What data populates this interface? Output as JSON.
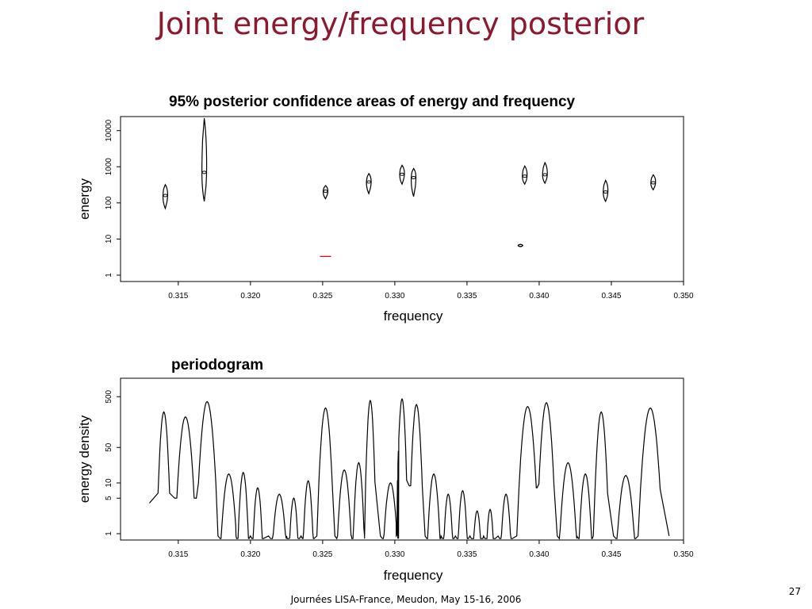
{
  "slide": {
    "title": "Joint energy/frequency posterior",
    "footer": "Journées LISA-France, Meudon, May 15-16,  2006",
    "page_number": "27"
  },
  "chart_data": [
    {
      "type": "scatter",
      "title": "95% posterior confidence areas of energy and frequency",
      "xlabel": "frequency",
      "ylabel": "energy",
      "xlim": [
        0.311,
        0.35
      ],
      "ylim": [
        1,
        20000
      ],
      "y_scale": "log",
      "x_ticks": [
        "0.315",
        "0.320",
        "0.325",
        "0.330",
        "0.335",
        "0.340",
        "0.345",
        "0.350"
      ],
      "y_ticks": [
        "1",
        "10",
        "100",
        "1000",
        "10000"
      ],
      "grid": false,
      "points": [
        {
          "x": 0.3141,
          "y": 160,
          "y_low": 70,
          "y_high": 320
        },
        {
          "x": 0.3168,
          "y": 700,
          "y_low": 110,
          "y_high": 22000
        },
        {
          "x": 0.3252,
          "y": 210,
          "y_low": 130,
          "y_high": 300
        },
        {
          "x": 0.3282,
          "y": 380,
          "y_low": 180,
          "y_high": 650
        },
        {
          "x": 0.3305,
          "y": 620,
          "y_low": 330,
          "y_high": 1100
        },
        {
          "x": 0.3313,
          "y": 500,
          "y_low": 150,
          "y_high": 900
        },
        {
          "x": 0.339,
          "y": 550,
          "y_low": 330,
          "y_high": 1050
        },
        {
          "x": 0.3404,
          "y": 600,
          "y_low": 350,
          "y_high": 1300
        },
        {
          "x": 0.3446,
          "y": 200,
          "y_low": 110,
          "y_high": 420
        },
        {
          "x": 0.3479,
          "y": 360,
          "y_low": 230,
          "y_high": 600
        },
        {
          "x": 0.3387,
          "y": 6.6,
          "y_low": 6.2,
          "y_high": 7.1
        }
      ],
      "red_marker": {
        "x": 0.3252,
        "y": 3.3,
        "color": "#d01010"
      }
    },
    {
      "type": "line",
      "title": "periodogram",
      "xlabel": "frequency",
      "ylabel": "energy density",
      "xlim": [
        0.311,
        0.35
      ],
      "ylim": [
        1,
        1000
      ],
      "y_scale": "log",
      "x_ticks": [
        "0.315",
        "0.320",
        "0.325",
        "0.330",
        "0.335",
        "0.340",
        "0.345",
        "0.350"
      ],
      "y_ticks": [
        "1",
        "5",
        "10",
        "50",
        "500"
      ],
      "grid": false,
      "peaks": [
        {
          "x": 0.314,
          "y": 250
        },
        {
          "x": 0.3155,
          "y": 200
        },
        {
          "x": 0.317,
          "y": 400
        },
        {
          "x": 0.3185,
          "y": 15
        },
        {
          "x": 0.3195,
          "y": 16
        },
        {
          "x": 0.3205,
          "y": 8
        },
        {
          "x": 0.322,
          "y": 6
        },
        {
          "x": 0.323,
          "y": 5
        },
        {
          "x": 0.324,
          "y": 11
        },
        {
          "x": 0.3252,
          "y": 300
        },
        {
          "x": 0.3265,
          "y": 18
        },
        {
          "x": 0.3275,
          "y": 25
        },
        {
          "x": 0.3283,
          "y": 420
        },
        {
          "x": 0.3297,
          "y": 10
        },
        {
          "x": 0.3305,
          "y": 450
        },
        {
          "x": 0.3315,
          "y": 350
        },
        {
          "x": 0.3327,
          "y": 15
        },
        {
          "x": 0.3337,
          "y": 6
        },
        {
          "x": 0.3347,
          "y": 7
        },
        {
          "x": 0.3357,
          "y": 2.8
        },
        {
          "x": 0.3366,
          "y": 3
        },
        {
          "x": 0.3377,
          "y": 6
        },
        {
          "x": 0.3392,
          "y": 320
        },
        {
          "x": 0.3405,
          "y": 380
        },
        {
          "x": 0.342,
          "y": 25
        },
        {
          "x": 0.3432,
          "y": 15
        },
        {
          "x": 0.3443,
          "y": 250
        },
        {
          "x": 0.346,
          "y": 14
        },
        {
          "x": 0.3477,
          "y": 300
        }
      ]
    }
  ]
}
